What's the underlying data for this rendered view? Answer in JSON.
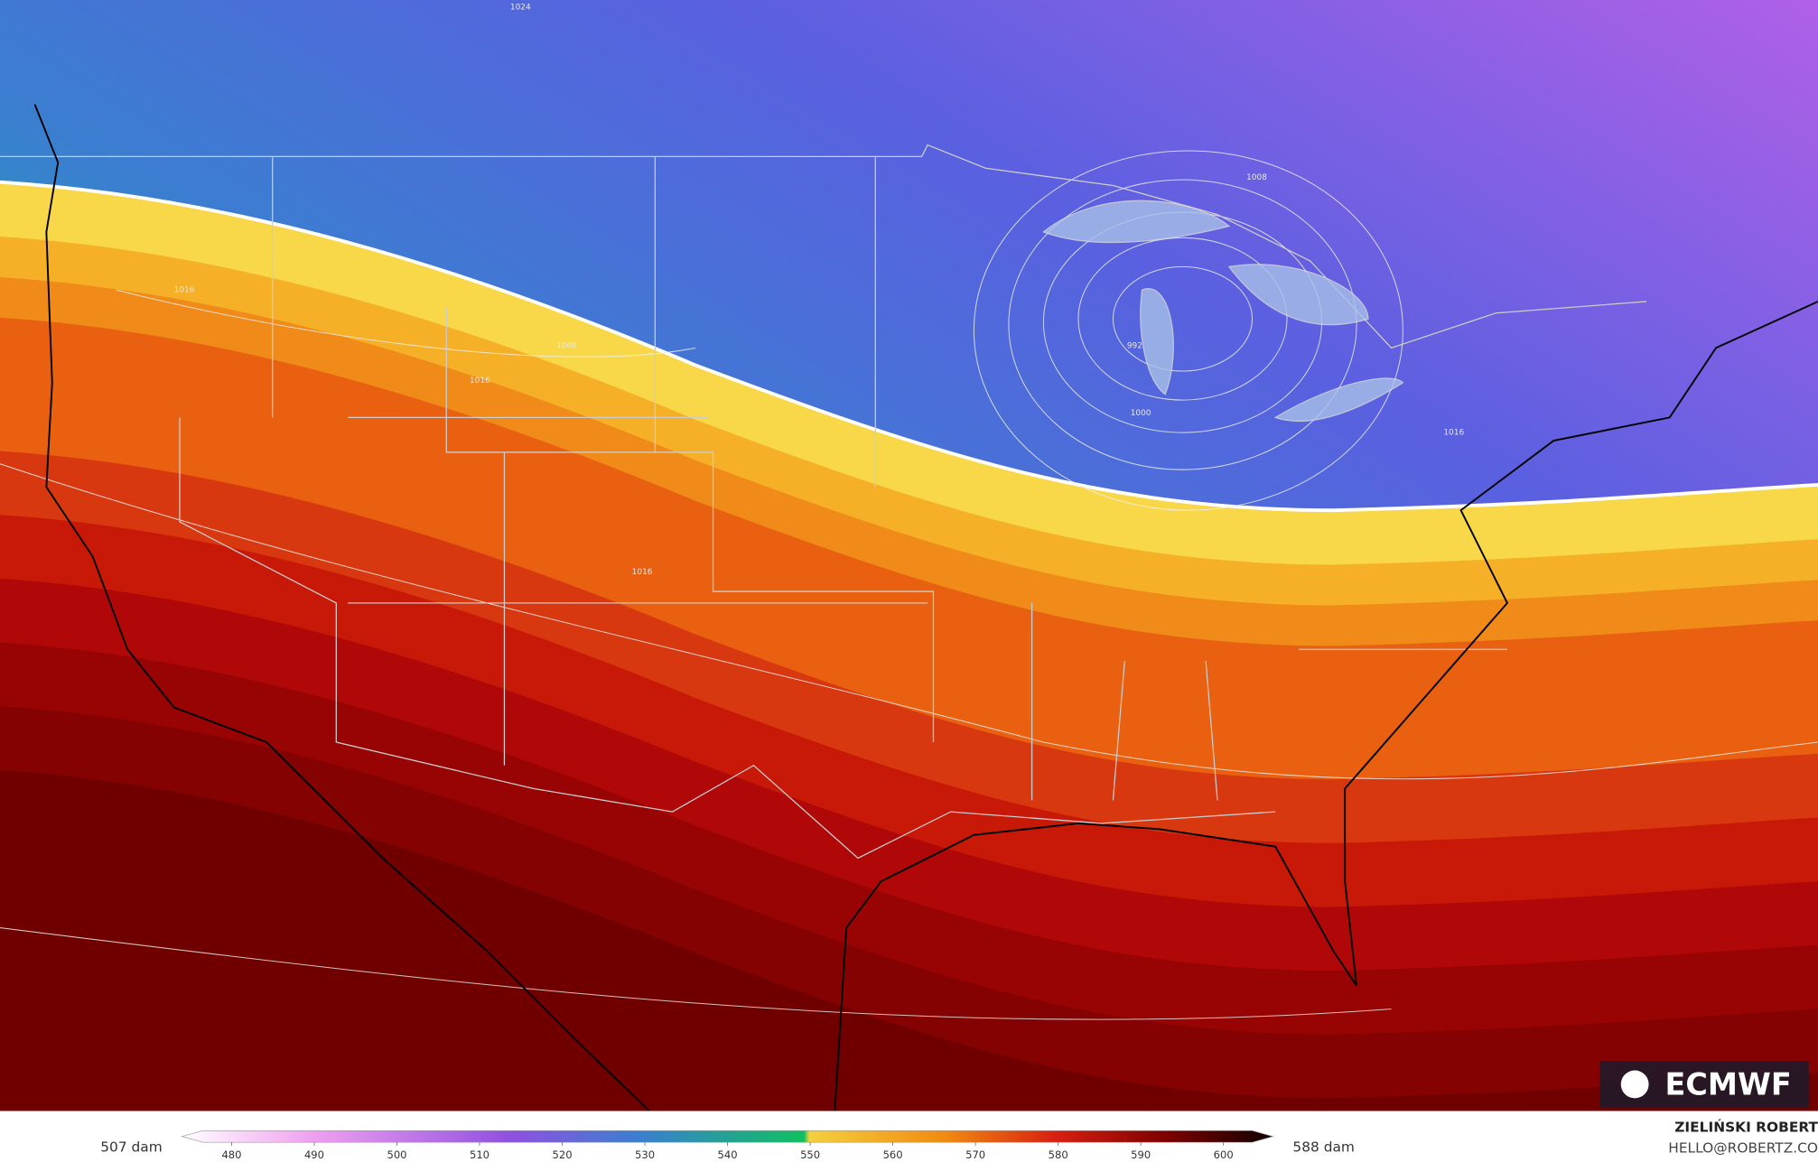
{
  "map": {
    "contour_labels": [
      "1024",
      "1016",
      "1008",
      "1000",
      "992",
      "1016",
      "1016",
      "1016",
      "1008"
    ],
    "logo": "ECMWF",
    "legend": {
      "min_label": "507 dam",
      "max_label": "588 dam",
      "lim": [
        474,
        606
      ],
      "ticks": [
        480,
        490,
        500,
        510,
        520,
        530,
        540,
        550,
        560,
        570,
        580,
        590,
        600
      ]
    },
    "credit": {
      "name": "ZIELIŃSKI ROBERT",
      "contact": "HELLO@ROBERTZ.CO"
    }
  }
}
